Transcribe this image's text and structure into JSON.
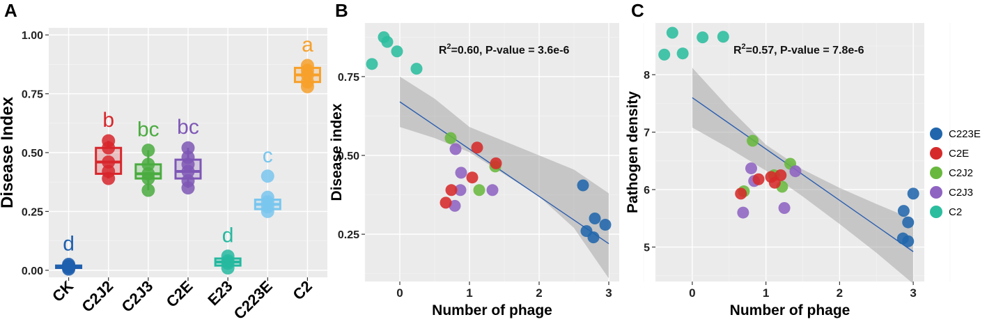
{
  "chart_data": [
    {
      "panel": "A",
      "type": "boxplot",
      "ylabel": "Disease Index",
      "xlabel": "",
      "ylim": [
        -0.03,
        1.03
      ],
      "yticks": [
        "0.00",
        "0.25",
        "0.50",
        "0.75",
        "1.00"
      ],
      "categories": [
        "CK",
        "C2J2",
        "C2J3",
        "C2E",
        "E23",
        "C223E",
        "C2"
      ],
      "groups": [
        {
          "name": "CK",
          "color": "#1f5fae",
          "letter": "d",
          "box": {
            "q1": 0.01,
            "median": 0.015,
            "q3": 0.02,
            "lo": 0.005,
            "hi": 0.025
          },
          "points": [
            0.005,
            0.01,
            0.015,
            0.02,
            0.025
          ]
        },
        {
          "name": "C2J2",
          "color": "#d7262b",
          "letter": "b",
          "box": {
            "q1": 0.41,
            "median": 0.46,
            "q3": 0.52,
            "lo": 0.39,
            "hi": 0.55
          },
          "points": [
            0.39,
            0.42,
            0.46,
            0.52,
            0.55
          ]
        },
        {
          "name": "C2J3",
          "color": "#4aab3f",
          "letter": "bc",
          "box": {
            "q1": 0.39,
            "median": 0.41,
            "q3": 0.45,
            "lo": 0.34,
            "hi": 0.51
          },
          "points": [
            0.34,
            0.39,
            0.41,
            0.45,
            0.51
          ]
        },
        {
          "name": "C2E",
          "color": "#7e57b5",
          "letter": "bc",
          "box": {
            "q1": 0.39,
            "median": 0.42,
            "q3": 0.47,
            "lo": 0.35,
            "hi": 0.52
          },
          "points": [
            0.35,
            0.38,
            0.42,
            0.45,
            0.48,
            0.52
          ]
        },
        {
          "name": "E23",
          "color": "#26b8a0",
          "letter": "d",
          "box": {
            "q1": 0.02,
            "median": 0.035,
            "q3": 0.05,
            "lo": 0.01,
            "hi": 0.06
          },
          "points": [
            0.01,
            0.03,
            0.04,
            0.06
          ]
        },
        {
          "name": "C223E",
          "color": "#79c6ee",
          "letter": "c",
          "box": {
            "q1": 0.26,
            "median": 0.28,
            "q3": 0.3,
            "lo": 0.25,
            "hi": 0.31
          },
          "points": [
            0.25,
            0.27,
            0.29,
            0.31,
            0.4
          ]
        },
        {
          "name": "C2",
          "color": "#f7a02a",
          "letter": "a",
          "box": {
            "q1": 0.8,
            "median": 0.83,
            "q3": 0.86,
            "lo": 0.78,
            "hi": 0.87
          },
          "points": [
            0.78,
            0.8,
            0.83,
            0.85,
            0.87
          ]
        }
      ]
    },
    {
      "panel": "B",
      "type": "scatter",
      "xlabel": "Number of phage",
      "ylabel": "Disease index",
      "xlim": [
        -0.5,
        3.15
      ],
      "ylim": [
        0.1,
        0.92
      ],
      "xticks": [
        "0",
        "1",
        "2",
        "3"
      ],
      "yticks": [
        "0.25",
        "0.50",
        "0.75"
      ],
      "annotation": {
        "r2_prefix": "R",
        "r2_sup": "2",
        "text": "=0.60, P-value = 3.6e-6"
      },
      "fit": {
        "x0": 0,
        "y0": 0.67,
        "x1": 3,
        "y1": 0.22
      },
      "ci": {
        "xs": [
          0,
          0.5,
          1,
          1.5,
          2,
          2.5,
          3
        ],
        "lower": [
          0.59,
          0.555,
          0.51,
          0.44,
          0.37,
          0.27,
          0.11
        ],
        "upper": [
          0.75,
          0.68,
          0.59,
          0.545,
          0.5,
          0.455,
          0.38
        ]
      },
      "series": [
        {
          "name": "C2",
          "color": "#2bbd9e",
          "points": [
            [
              -0.23,
              0.875
            ],
            [
              -0.18,
              0.86
            ],
            [
              -0.04,
              0.83
            ],
            [
              -0.4,
              0.79
            ],
            [
              0.24,
              0.775
            ]
          ]
        },
        {
          "name": "C2J2",
          "color": "#69b83e",
          "points": [
            [
              0.73,
              0.555
            ],
            [
              1.37,
              0.465
            ],
            [
              1.14,
              0.39
            ]
          ]
        },
        {
          "name": "C2J3",
          "color": "#8e63c2",
          "points": [
            [
              0.8,
              0.52
            ],
            [
              0.88,
              0.445
            ],
            [
              0.87,
              0.39
            ],
            [
              0.79,
              0.34
            ],
            [
              1.33,
              0.39
            ]
          ]
        },
        {
          "name": "C2E",
          "color": "#d62a2a",
          "points": [
            [
              1.11,
              0.525
            ],
            [
              1.38,
              0.475
            ],
            [
              1.04,
              0.43
            ],
            [
              0.74,
              0.39
            ],
            [
              0.66,
              0.35
            ]
          ]
        },
        {
          "name": "C223E",
          "color": "#2166ac",
          "points": [
            [
              2.63,
              0.405
            ],
            [
              2.68,
              0.26
            ],
            [
              2.8,
              0.3
            ],
            [
              2.95,
              0.28
            ],
            [
              2.78,
              0.24
            ]
          ]
        }
      ]
    },
    {
      "panel": "C",
      "type": "scatter",
      "xlabel": "Number of phage",
      "ylabel": "Pathogen density",
      "xlim": [
        -0.5,
        3.15
      ],
      "ylim": [
        4.4,
        8.9
      ],
      "xticks": [
        "0",
        "1",
        "2",
        "3"
      ],
      "yticks": [
        "5",
        "6",
        "7",
        "8"
      ],
      "annotation": {
        "r2_prefix": "R",
        "r2_sup": "2",
        "text": "=0.57, P-value = 7.8e-6"
      },
      "fit": {
        "x0": 0,
        "y0": 7.6,
        "x1": 3,
        "y1": 4.92
      },
      "ci": {
        "xs": [
          0,
          0.5,
          1,
          1.5,
          2,
          2.5,
          3
        ],
        "lower": [
          7.08,
          6.72,
          6.33,
          5.88,
          5.4,
          4.9,
          4.36
        ],
        "upper": [
          8.12,
          7.42,
          6.78,
          6.35,
          6.03,
          5.75,
          5.48
        ]
      },
      "series": [
        {
          "name": "C2",
          "color": "#2bbd9e",
          "points": [
            [
              -0.27,
              8.73
            ],
            [
              0.14,
              8.65
            ],
            [
              0.42,
              8.66
            ],
            [
              -0.38,
              8.35
            ],
            [
              -0.13,
              8.37
            ]
          ]
        },
        {
          "name": "C2J2",
          "color": "#69b83e",
          "points": [
            [
              0.82,
              6.85
            ],
            [
              1.33,
              6.45
            ],
            [
              1.11,
              6.25
            ],
            [
              1.22,
              6.05
            ],
            [
              0.7,
              5.97
            ]
          ]
        },
        {
          "name": "C2J3",
          "color": "#8e63c2",
          "points": [
            [
              1.4,
              6.32
            ],
            [
              0.8,
              6.37
            ],
            [
              0.84,
              6.15
            ],
            [
              0.69,
              5.6
            ],
            [
              1.25,
              5.68
            ]
          ]
        },
        {
          "name": "C2E",
          "color": "#d62a2a",
          "points": [
            [
              1.2,
              6.25
            ],
            [
              0.9,
              6.18
            ],
            [
              1.07,
              6.22
            ],
            [
              1.12,
              6.12
            ],
            [
              0.66,
              5.93
            ]
          ]
        },
        {
          "name": "C223E",
          "color": "#2166ac",
          "points": [
            [
              3.0,
              5.93
            ],
            [
              2.87,
              5.63
            ],
            [
              2.93,
              5.43
            ],
            [
              2.86,
              5.15
            ],
            [
              2.93,
              5.1
            ]
          ]
        }
      ]
    }
  ],
  "legend": {
    "items": [
      {
        "name": "C223E",
        "color": "#2166ac"
      },
      {
        "name": "C2E",
        "color": "#d62a2a"
      },
      {
        "name": "C2J2",
        "color": "#69b83e"
      },
      {
        "name": "C2J3",
        "color": "#8e63c2"
      },
      {
        "name": "C2",
        "color": "#2bbd9e"
      }
    ]
  }
}
